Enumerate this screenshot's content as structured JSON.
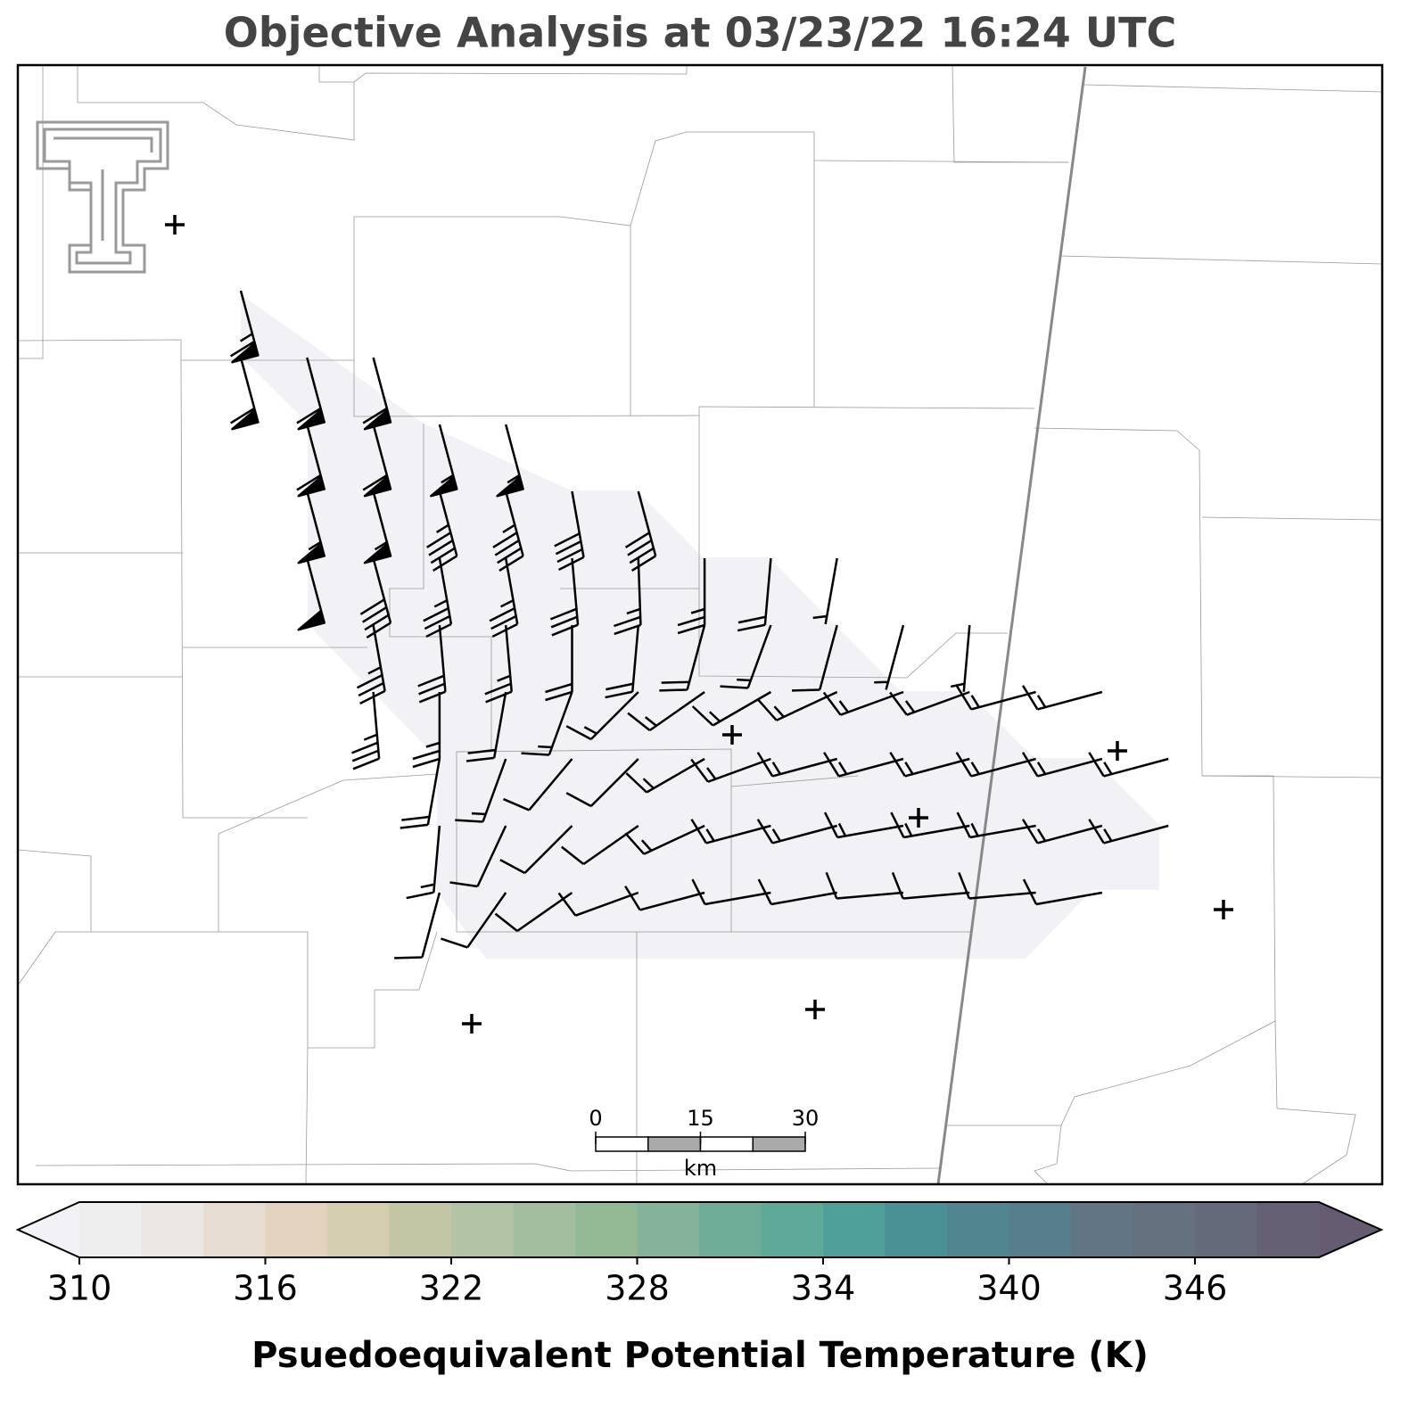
{
  "title": "Objective Analysis at 03/23/22 16:24 UTC",
  "map": {
    "wind_barbs": {
      "speed_kt": [
        [
          65,
          null,
          null,
          null,
          null,
          null,
          null,
          null,
          null,
          null,
          null,
          null,
          null,
          null,
          null
        ],
        [
          60,
          60,
          60,
          null,
          null,
          null,
          null,
          null,
          null,
          null,
          null,
          null,
          null,
          null,
          null
        ],
        [
          null,
          60,
          60,
          55,
          55,
          null,
          null,
          null,
          null,
          null,
          null,
          null,
          null,
          null,
          null
        ],
        [
          null,
          55,
          55,
          45,
          45,
          40,
          40,
          null,
          null,
          null,
          null,
          null,
          null,
          null,
          null
        ],
        [
          null,
          50,
          40,
          35,
          35,
          30,
          25,
          25,
          20,
          5,
          null,
          null,
          null,
          null,
          null
        ],
        [
          null,
          null,
          35,
          30,
          25,
          20,
          20,
          20,
          15,
          10,
          5,
          5,
          null,
          null,
          null
        ],
        [
          null,
          null,
          35,
          25,
          20,
          15,
          15,
          15,
          15,
          15,
          15,
          15,
          15,
          15,
          null
        ],
        [
          null,
          null,
          null,
          20,
          15,
          10,
          10,
          15,
          15,
          15,
          15,
          15,
          15,
          15,
          15
        ],
        [
          null,
          null,
          null,
          15,
          10,
          10,
          10,
          15,
          15,
          15,
          15,
          15,
          15,
          15,
          15
        ],
        [
          null,
          null,
          null,
          10,
          10,
          10,
          10,
          10,
          10,
          10,
          10,
          10,
          10,
          10,
          null
        ]
      ],
      "direction_deg": [
        [
          165,
          null,
          null,
          null,
          null,
          null,
          null,
          null,
          null,
          null,
          null,
          null,
          null,
          null,
          null
        ],
        [
          165,
          165,
          165,
          null,
          null,
          null,
          null,
          null,
          null,
          null,
          null,
          null,
          null,
          null,
          null
        ],
        [
          null,
          165,
          165,
          165,
          165,
          null,
          null,
          null,
          null,
          null,
          null,
          null,
          null,
          null,
          null
        ],
        [
          null,
          165,
          165,
          165,
          165,
          170,
          165,
          null,
          null,
          null,
          null,
          null,
          null,
          null,
          null
        ],
        [
          null,
          165,
          165,
          170,
          170,
          175,
          178,
          180,
          185,
          190,
          null,
          null,
          null,
          null,
          null
        ],
        [
          null,
          null,
          170,
          175,
          175,
          180,
          185,
          195,
          200,
          195,
          195,
          185,
          null,
          null,
          null
        ],
        [
          null,
          null,
          175,
          180,
          190,
          200,
          225,
          235,
          240,
          245,
          250,
          250,
          255,
          255,
          null
        ],
        [
          null,
          null,
          null,
          190,
          200,
          220,
          225,
          240,
          250,
          255,
          255,
          255,
          255,
          255,
          255
        ],
        [
          null,
          null,
          null,
          185,
          205,
          225,
          235,
          245,
          255,
          255,
          260,
          260,
          260,
          255,
          255
        ],
        [
          null,
          null,
          null,
          195,
          215,
          235,
          250,
          255,
          260,
          260,
          265,
          265,
          265,
          260,
          null
        ]
      ],
      "color": "#000000"
    },
    "scale_bar": {
      "ticks": [
        0,
        15,
        30
      ],
      "unit": "km"
    }
  },
  "colorbar": {
    "label": "Psuedoequivalent Potential Temperature (K)",
    "lim": [
      310,
      350
    ],
    "ticks": [
      310,
      316,
      322,
      328,
      334,
      340,
      346
    ],
    "colors": [
      "#efeeef",
      "#ebe7e4",
      "#e6dcd2",
      "#e3d3be",
      "#d4cdb0",
      "#c3c6a5",
      "#b3c3a6",
      "#a3be9f",
      "#94b995",
      "#85b39a",
      "#70ad98",
      "#5fa999",
      "#4f9f9a",
      "#4a9196",
      "#4f8690",
      "#577e8c",
      "#627585",
      "#66717f",
      "#656a7b",
      "#666075"
    ],
    "under_color": "#f2f2f6",
    "over_color": "#655c72"
  }
}
